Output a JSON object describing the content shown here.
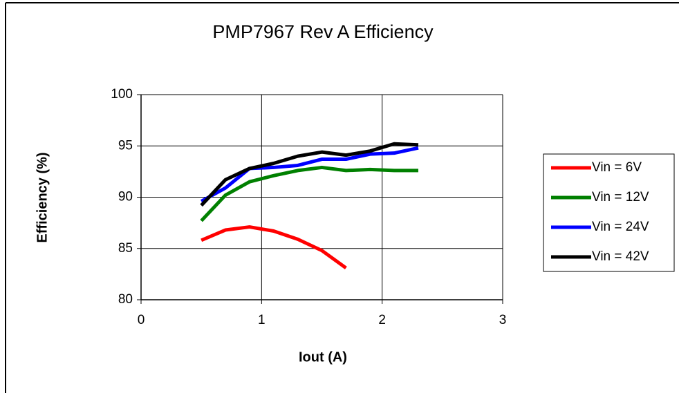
{
  "chart_data": {
    "type": "line",
    "title": "PMP7967 Rev A Efficiency",
    "x_label": "Iout (A)",
    "y_label": "Efficiency (%)",
    "x": [
      0.5,
      0.7,
      0.9,
      1.1,
      1.3,
      1.5,
      1.7,
      1.9,
      2.1,
      2.3
    ],
    "series": [
      {
        "name": "Vin = 6V",
        "color": "#ff0000",
        "values": [
          85.8,
          86.8,
          87.1,
          86.7,
          85.9,
          84.8,
          83.1,
          null,
          null,
          null
        ]
      },
      {
        "name": "Vin = 12V",
        "color": "#008000",
        "values": [
          87.7,
          90.2,
          91.5,
          92.1,
          92.6,
          92.9,
          92.6,
          92.7,
          92.6,
          92.6
        ]
      },
      {
        "name": "Vin = 24V",
        "color": "#0000ff",
        "values": [
          89.6,
          90.9,
          92.8,
          92.9,
          93.1,
          93.7,
          93.7,
          94.2,
          94.3,
          94.8
        ]
      },
      {
        "name": "Vin = 42V",
        "color": "#000000",
        "values": [
          89.2,
          91.7,
          92.8,
          93.3,
          94.0,
          94.4,
          94.1,
          94.5,
          95.2,
          95.1
        ]
      }
    ],
    "xlim": [
      0,
      3
    ],
    "xticks": [
      0,
      1,
      2,
      3
    ],
    "ylim": [
      80,
      100
    ],
    "yticks": [
      80,
      85,
      90,
      95,
      100
    ],
    "grid": true,
    "legend": "right"
  }
}
